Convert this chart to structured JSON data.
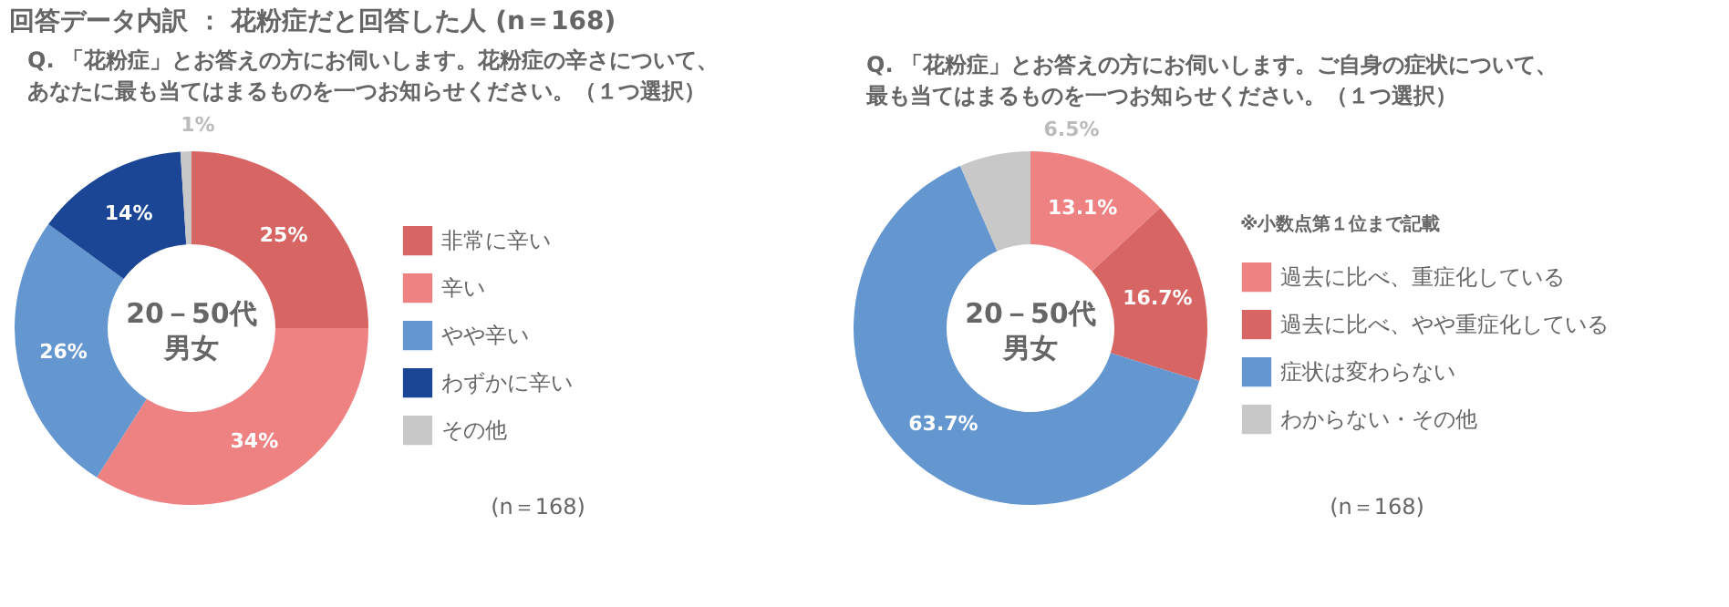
{
  "chart_data": [
    {
      "type": "donut",
      "title": "回答データ内訳 ： 花粉症だと回答した人 (n＝168)",
      "subtitle": "Q. 「花粉症」とお答えの方にお伺いします。花粉症の辛さについて、あなたに最も当てはまるものを一つお知らせください。（１つ選択）",
      "categories": [
        "非常に辛い",
        "辛い",
        "やや辛い",
        "わずかに辛い",
        "その他"
      ],
      "values": [
        25,
        34,
        26,
        14,
        1
      ],
      "colors": [
        "#d76563",
        "#ee8283",
        "#6496cf",
        "#1b4595",
        "#c8c8c8"
      ],
      "value_labels": [
        "25%",
        "34%",
        "26%",
        "14%",
        "1%"
      ],
      "annotations": [
        "20－50代男女",
        "(n＝168)"
      ],
      "legend": "right"
    },
    {
      "type": "donut",
      "subtitle": "Q. 「花粉症」とお答えの方にお伺いします。ご自身の症状について、最も当てはまるものを一つお知らせください。（１つ選択）",
      "categories": [
        "過去に比べ、重症化している",
        "過去に比べ、やや重症化している",
        "症状は変わらない",
        "わからない・その他"
      ],
      "values": [
        13.1,
        16.7,
        63.7,
        6.5
      ],
      "colors": [
        "#ee8283",
        "#d76563",
        "#6496cf",
        "#c8c8c8"
      ],
      "value_labels": [
        "13.1%",
        "16.7%",
        "63.7%",
        "6.5%"
      ],
      "annotations": [
        "20－50代男女",
        "※小数点第１位まで記載",
        "(n＝168)"
      ],
      "legend": "right"
    }
  ]
}
